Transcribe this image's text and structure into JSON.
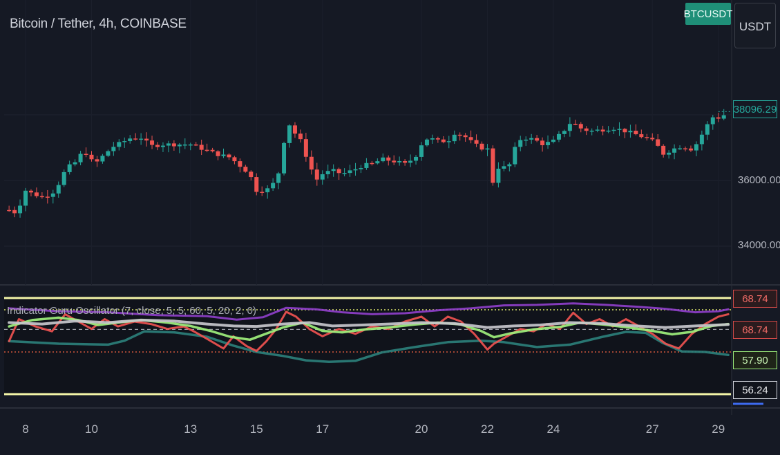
{
  "header": {
    "symbol_title": "Bitcoin / Tether, 4h, COINBASE",
    "symbol_badge": "BTCUSDT",
    "currency_button": "USDT"
  },
  "price_axis": {
    "ticks": [
      "36000.00",
      "34000.00"
    ],
    "last_price_label": "38096.29"
  },
  "indicator": {
    "title": "Indicator Guru Oscillator (7, close, 5, 5, 60, 5, 20, 2, 0)",
    "value_labels": [
      "68.74",
      "68.74",
      "57.90",
      "56.24"
    ]
  },
  "colors": {
    "background": "#151924",
    "up": "#26a69a",
    "down": "#ef5350",
    "purple": "#8e3fc9",
    "teal": "#2b7f7a",
    "green": "#9ef07c",
    "grey": "#c7c7cc",
    "yellow": "#f3f5a8"
  },
  "chart_data": [
    {
      "type": "candlestick",
      "title": "Bitcoin / Tether, 4h, COINBASE",
      "x_tick_labels": [
        "8",
        "10",
        "13",
        "15",
        "17",
        "20",
        "22",
        "24",
        "27",
        "29"
      ],
      "y_tick_labels": [
        "36000.00",
        "34000.00"
      ],
      "ylim": [
        33600,
        39200
      ],
      "last_price": 38096.29,
      "close_path": [
        [
          7.5,
          35100
        ],
        [
          7.6,
          34950
        ],
        [
          7.8,
          35200
        ],
        [
          8.0,
          35700
        ],
        [
          8.2,
          35600
        ],
        [
          8.5,
          35500
        ],
        [
          8.8,
          35600
        ],
        [
          9.0,
          35900
        ],
        [
          9.2,
          36300
        ],
        [
          9.4,
          36500
        ],
        [
          9.6,
          36600
        ],
        [
          9.75,
          37000
        ],
        [
          9.9,
          36700
        ],
        [
          10.1,
          36500
        ],
        [
          10.3,
          36700
        ],
        [
          10.6,
          37000
        ],
        [
          10.9,
          37150
        ],
        [
          11.2,
          37300
        ],
        [
          11.5,
          37300
        ],
        [
          11.8,
          37050
        ],
        [
          12.2,
          37100
        ],
        [
          12.6,
          37100
        ],
        [
          13.0,
          37100
        ],
        [
          13.4,
          36950
        ],
        [
          13.8,
          36800
        ],
        [
          14.2,
          36700
        ],
        [
          14.5,
          36450
        ],
        [
          14.8,
          36200
        ],
        [
          14.95,
          35700
        ],
        [
          15.1,
          35700
        ],
        [
          15.3,
          35700
        ],
        [
          15.5,
          35900
        ],
        [
          15.7,
          36300
        ],
        [
          15.85,
          37300
        ],
        [
          16.0,
          37700
        ],
        [
          16.1,
          37500
        ],
        [
          16.3,
          37300
        ],
        [
          16.6,
          36500
        ],
        [
          16.8,
          36000
        ],
        [
          17.0,
          36200
        ],
        [
          17.3,
          36300
        ],
        [
          17.6,
          36200
        ],
        [
          17.9,
          36300
        ],
        [
          18.2,
          36450
        ],
        [
          18.5,
          36500
        ],
        [
          18.8,
          36650
        ],
        [
          19.1,
          36600
        ],
        [
          19.5,
          36500
        ],
        [
          19.8,
          36700
        ],
        [
          20.0,
          37100
        ],
        [
          20.2,
          37300
        ],
        [
          20.5,
          37200
        ],
        [
          20.8,
          37200
        ],
        [
          21.0,
          37450
        ],
        [
          21.3,
          37350
        ],
        [
          21.6,
          37100
        ],
        [
          21.8,
          37000
        ],
        [
          22.0,
          36950
        ],
        [
          22.15,
          35900
        ],
        [
          22.3,
          36400
        ],
        [
          22.5,
          36400
        ],
        [
          22.7,
          36500
        ],
        [
          22.9,
          37200
        ],
        [
          23.1,
          37300
        ],
        [
          23.4,
          37250
        ],
        [
          23.7,
          37100
        ],
        [
          24.0,
          37200
        ],
        [
          24.3,
          37500
        ],
        [
          24.55,
          37800
        ],
        [
          24.8,
          37600
        ],
        [
          25.1,
          37500
        ],
        [
          25.5,
          37550
        ],
        [
          25.8,
          37600
        ],
        [
          26.2,
          37500
        ],
        [
          26.5,
          37400
        ],
        [
          26.8,
          37300
        ],
        [
          27.1,
          37150
        ],
        [
          27.3,
          36800
        ],
        [
          27.6,
          36950
        ],
        [
          27.9,
          37050
        ],
        [
          28.2,
          36950
        ],
        [
          28.4,
          37200
        ],
        [
          28.6,
          37600
        ],
        [
          28.85,
          37950
        ],
        [
          29.05,
          37900
        ],
        [
          29.3,
          38096
        ]
      ]
    },
    {
      "type": "line",
      "title": "Indicator Guru Oscillator (7, close, 5, 5, 60, 5, 20, 2, 0)",
      "ylim": [
        50,
        72
      ],
      "series": [
        {
          "color": "#8e3fc9",
          "points": [
            [
              7.5,
              68.2
            ],
            [
              9.0,
              67.6
            ],
            [
              10.5,
              67.4
            ],
            [
              12.0,
              66.8
            ],
            [
              13.5,
              66.6
            ],
            [
              14.4,
              65.9
            ],
            [
              15.2,
              66.4
            ],
            [
              15.9,
              68.3
            ],
            [
              16.8,
              68.0
            ],
            [
              17.6,
              67.4
            ],
            [
              18.5,
              67.0
            ],
            [
              19.5,
              67.2
            ],
            [
              20.5,
              67.8
            ],
            [
              21.5,
              68.2
            ],
            [
              22.5,
              68.8
            ],
            [
              23.5,
              68.9
            ],
            [
              24.6,
              69.2
            ],
            [
              25.6,
              68.9
            ],
            [
              26.6,
              68.5
            ],
            [
              27.4,
              68.1
            ],
            [
              28.3,
              67.4
            ],
            [
              29.0,
              67.6
            ],
            [
              29.3,
              68.0
            ]
          ]
        },
        {
          "color": "#2b7f7a",
          "points": [
            [
              7.5,
              61.5
            ],
            [
              9.0,
              61.0
            ],
            [
              10.5,
              60.8
            ],
            [
              11.0,
              61.6
            ],
            [
              11.6,
              63.5
            ],
            [
              12.5,
              63.3
            ],
            [
              13.5,
              62.4
            ],
            [
              14.3,
              60.6
            ],
            [
              15.0,
              59.3
            ],
            [
              15.8,
              58.5
            ],
            [
              16.5,
              57.6
            ],
            [
              17.2,
              57.3
            ],
            [
              18.0,
              57.5
            ],
            [
              18.8,
              59.2
            ],
            [
              19.8,
              60.3
            ],
            [
              20.8,
              61.3
            ],
            [
              21.8,
              61.6
            ],
            [
              22.5,
              61.3
            ],
            [
              23.5,
              60.3
            ],
            [
              24.5,
              60.8
            ],
            [
              25.5,
              62.4
            ],
            [
              26.2,
              63.4
            ],
            [
              26.8,
              63.2
            ],
            [
              27.3,
              61.2
            ],
            [
              27.9,
              59.4
            ],
            [
              28.6,
              59.3
            ],
            [
              29.3,
              58.7
            ]
          ]
        },
        {
          "color": "#ef5350",
          "points": [
            [
              7.5,
              61.5
            ],
            [
              7.8,
              66.0
            ],
            [
              8.3,
              64.5
            ],
            [
              8.8,
              63.5
            ],
            [
              9.2,
              67.0
            ],
            [
              9.6,
              65.5
            ],
            [
              10.0,
              64.0
            ],
            [
              10.4,
              66.0
            ],
            [
              10.8,
              64.5
            ],
            [
              11.3,
              65.5
            ],
            [
              11.8,
              65.0
            ],
            [
              12.3,
              64.0
            ],
            [
              12.8,
              64.5
            ],
            [
              13.1,
              63.5
            ],
            [
              13.5,
              62.0
            ],
            [
              14.0,
              60.0
            ],
            [
              14.3,
              62.5
            ],
            [
              14.7,
              60.5
            ],
            [
              15.0,
              59.5
            ],
            [
              15.3,
              61.5
            ],
            [
              15.6,
              64.0
            ],
            [
              15.9,
              67.5
            ],
            [
              16.2,
              66.5
            ],
            [
              16.6,
              64.0
            ],
            [
              17.0,
              62.5
            ],
            [
              17.5,
              64.0
            ],
            [
              18.0,
              63.0
            ],
            [
              18.5,
              64.5
            ],
            [
              19.0,
              64.0
            ],
            [
              19.5,
              65.5
            ],
            [
              20.0,
              66.5
            ],
            [
              20.4,
              64.5
            ],
            [
              20.8,
              66.5
            ],
            [
              21.2,
              65.5
            ],
            [
              21.6,
              63.0
            ],
            [
              22.0,
              59.8
            ],
            [
              22.2,
              61.0
            ],
            [
              22.6,
              62.5
            ],
            [
              23.0,
              64.0
            ],
            [
              23.4,
              63.5
            ],
            [
              23.8,
              65.0
            ],
            [
              24.2,
              64.0
            ],
            [
              24.6,
              67.3
            ],
            [
              25.0,
              65.0
            ],
            [
              25.4,
              66.0
            ],
            [
              25.8,
              64.5
            ],
            [
              26.2,
              66.0
            ],
            [
              26.6,
              64.5
            ],
            [
              27.0,
              63.0
            ],
            [
              27.4,
              61.0
            ],
            [
              27.8,
              60.0
            ],
            [
              28.2,
              63.0
            ],
            [
              28.6,
              65.0
            ],
            [
              29.0,
              66.5
            ],
            [
              29.3,
              67.0
            ]
          ]
        },
        {
          "color": "#9ef07c",
          "points": [
            [
              7.5,
              64.5
            ],
            [
              8.2,
              65.8
            ],
            [
              9.0,
              66.3
            ],
            [
              9.6,
              65.8
            ],
            [
              10.2,
              64.8
            ],
            [
              10.8,
              65.3
            ],
            [
              11.5,
              65.8
            ],
            [
              12.3,
              65.3
            ],
            [
              13.0,
              64.6
            ],
            [
              13.6,
              63.6
            ],
            [
              14.2,
              62.4
            ],
            [
              14.8,
              61.8
            ],
            [
              15.2,
              62.8
            ],
            [
              15.8,
              64.3
            ],
            [
              16.4,
              65.3
            ],
            [
              17.0,
              63.6
            ],
            [
              17.6,
              63.3
            ],
            [
              18.3,
              63.9
            ],
            [
              19.0,
              64.3
            ],
            [
              19.8,
              64.9
            ],
            [
              20.5,
              65.3
            ],
            [
              21.2,
              64.9
            ],
            [
              21.8,
              63.6
            ],
            [
              22.2,
              62.3
            ],
            [
              22.7,
              63.1
            ],
            [
              23.4,
              63.9
            ],
            [
              24.2,
              64.4
            ],
            [
              24.8,
              65.3
            ],
            [
              25.5,
              64.9
            ],
            [
              26.3,
              64.3
            ],
            [
              27.0,
              63.6
            ],
            [
              27.6,
              62.9
            ],
            [
              28.2,
              63.4
            ],
            [
              28.8,
              64.6
            ],
            [
              29.3,
              65.0
            ]
          ]
        },
        {
          "color": "#c7c7cc",
          "points": [
            [
              7.5,
              65.3
            ],
            [
              8.5,
              65.0
            ],
            [
              9.5,
              65.6
            ],
            [
              10.5,
              65.3
            ],
            [
              11.5,
              65.8
            ],
            [
              12.5,
              65.6
            ],
            [
              13.5,
              65.0
            ],
            [
              14.3,
              64.6
            ],
            [
              15.0,
              64.5
            ],
            [
              15.8,
              65.0
            ],
            [
              16.6,
              65.3
            ],
            [
              17.3,
              64.6
            ],
            [
              18.2,
              64.8
            ],
            [
              19.0,
              65.0
            ],
            [
              20.0,
              65.3
            ],
            [
              21.0,
              65.1
            ],
            [
              22.0,
              64.3
            ],
            [
              22.8,
              64.6
            ],
            [
              23.6,
              64.8
            ],
            [
              24.5,
              65.3
            ],
            [
              25.5,
              65.1
            ],
            [
              26.5,
              64.6
            ],
            [
              27.4,
              64.3
            ],
            [
              28.3,
              64.6
            ],
            [
              29.3,
              64.9
            ]
          ]
        }
      ],
      "reference_levels": {
        "upper_band": 70.3,
        "lower_band": 50.7,
        "top_dotted": 67.9,
        "middle_dashed": 63.9,
        "bottom_dotted": 59.3
      }
    }
  ]
}
